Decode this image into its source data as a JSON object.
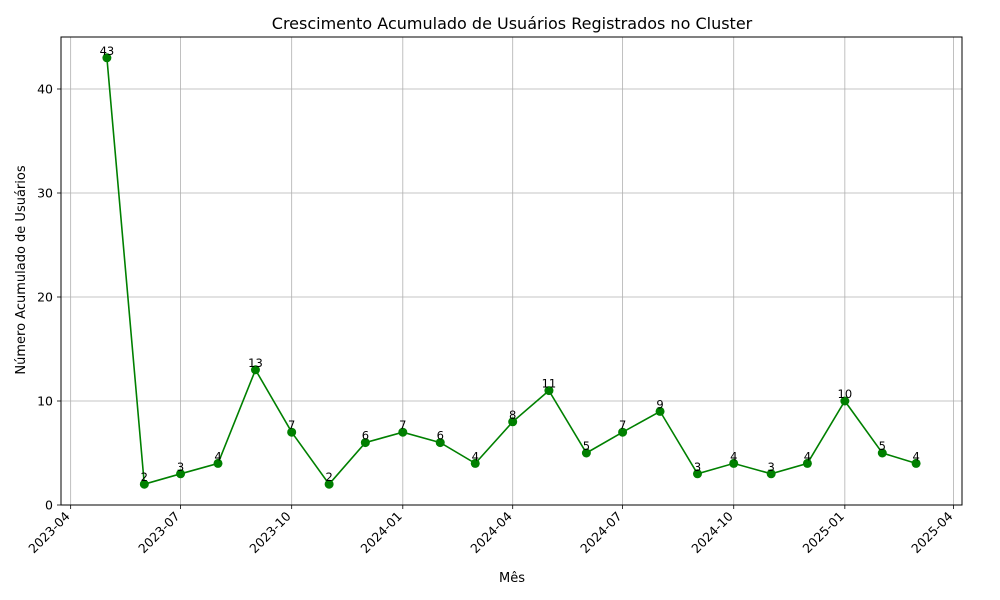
{
  "chart_data": {
    "type": "line",
    "title": "Crescimento Acumulado de Usuários Registrados no Cluster",
    "xlabel": "Mês",
    "ylabel": "Número Acumulado de Usuários",
    "x": [
      "2023-05-01",
      "2023-06-01",
      "2023-07-01",
      "2023-08-01",
      "2023-09-01",
      "2023-10-01",
      "2023-11-01",
      "2023-12-01",
      "2024-01-01",
      "2024-02-01",
      "2024-03-01",
      "2024-04-01",
      "2024-05-01",
      "2024-06-01",
      "2024-07-01",
      "2024-08-01",
      "2024-09-01",
      "2024-10-01",
      "2024-11-01",
      "2024-12-01",
      "2025-01-01",
      "2025-02-01",
      "2025-03-01"
    ],
    "series": [
      {
        "values": [
          43,
          2,
          3,
          4,
          13,
          7,
          2,
          6,
          7,
          6,
          4,
          8,
          11,
          5,
          7,
          9,
          3,
          4,
          3,
          4,
          10,
          5,
          4
        ]
      }
    ],
    "xlim": [
      "2023-03-24",
      "2025-04-08"
    ],
    "ylim": [
      0,
      45
    ],
    "x_ticks": [
      "2023-04",
      "2023-07",
      "2023-10",
      "2024-01",
      "2024-04",
      "2024-07",
      "2024-10",
      "2025-01",
      "2025-04"
    ],
    "y_ticks": [
      0,
      10,
      20,
      30,
      40
    ],
    "grid": true,
    "line_color": "#008000",
    "grid_color": "#b0b0b0"
  }
}
